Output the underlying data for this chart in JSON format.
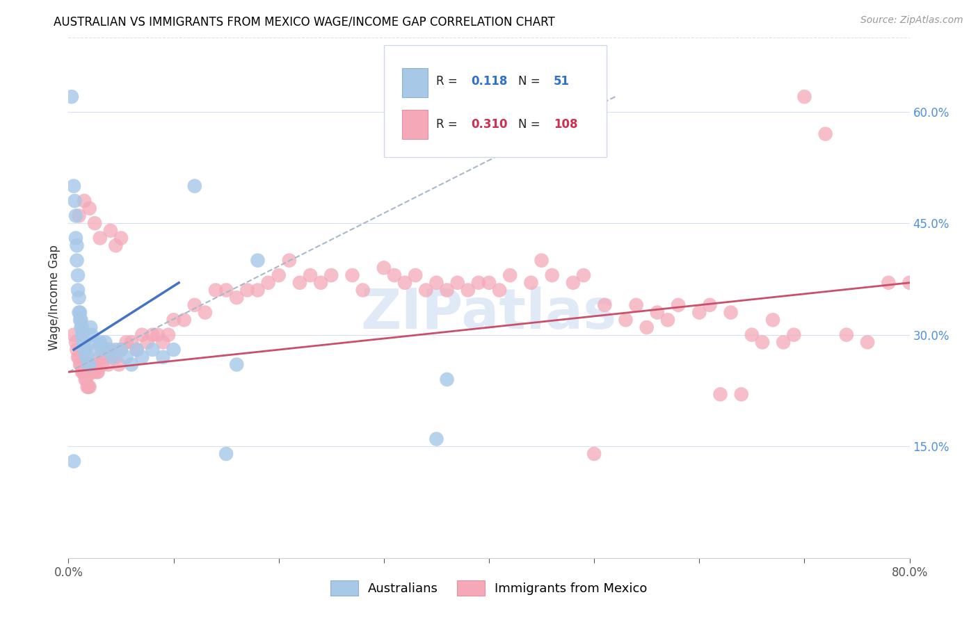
{
  "title": "AUSTRALIAN VS IMMIGRANTS FROM MEXICO WAGE/INCOME GAP CORRELATION CHART",
  "source": "Source: ZipAtlas.com",
  "ylabel": "Wage/Income Gap",
  "watermark": "ZIPatlas",
  "legend_label1": "Australians",
  "legend_label2": "Immigrants from Mexico",
  "R1": 0.118,
  "N1": 51,
  "R2": 0.31,
  "N2": 108,
  "color1": "#a8c8e8",
  "color2": "#f4a8b8",
  "line_color1": "#4472c4",
  "line_color2": "#c8506a",
  "dashed_line_color": "#a8b8cc",
  "grid_color": "#d8e0f0",
  "xmin": 0.0,
  "xmax": 0.8,
  "ymin": 0.0,
  "ymax": 0.7,
  "blue_x": [
    0.003,
    0.005,
    0.006,
    0.007,
    0.007,
    0.008,
    0.008,
    0.009,
    0.009,
    0.01,
    0.01,
    0.011,
    0.011,
    0.012,
    0.012,
    0.013,
    0.013,
    0.014,
    0.014,
    0.015,
    0.015,
    0.016,
    0.017,
    0.018,
    0.019,
    0.02,
    0.021,
    0.022,
    0.025,
    0.027,
    0.03,
    0.032,
    0.035,
    0.038,
    0.042,
    0.045,
    0.05,
    0.055,
    0.06,
    0.065,
    0.07,
    0.08,
    0.09,
    0.1,
    0.12,
    0.15,
    0.16,
    0.18,
    0.35,
    0.36,
    0.005
  ],
  "blue_y": [
    0.62,
    0.5,
    0.48,
    0.46,
    0.43,
    0.42,
    0.4,
    0.38,
    0.36,
    0.35,
    0.33,
    0.33,
    0.32,
    0.32,
    0.31,
    0.31,
    0.3,
    0.3,
    0.29,
    0.29,
    0.28,
    0.28,
    0.27,
    0.27,
    0.26,
    0.26,
    0.31,
    0.3,
    0.29,
    0.28,
    0.29,
    0.28,
    0.29,
    0.28,
    0.27,
    0.28,
    0.28,
    0.27,
    0.26,
    0.28,
    0.27,
    0.28,
    0.27,
    0.28,
    0.5,
    0.14,
    0.26,
    0.4,
    0.16,
    0.24,
    0.13
  ],
  "pink_x": [
    0.005,
    0.007,
    0.008,
    0.009,
    0.01,
    0.011,
    0.012,
    0.013,
    0.014,
    0.015,
    0.016,
    0.017,
    0.018,
    0.019,
    0.02,
    0.021,
    0.022,
    0.023,
    0.024,
    0.025,
    0.027,
    0.028,
    0.03,
    0.032,
    0.035,
    0.038,
    0.04,
    0.042,
    0.045,
    0.048,
    0.05,
    0.055,
    0.06,
    0.065,
    0.07,
    0.075,
    0.08,
    0.085,
    0.09,
    0.095,
    0.1,
    0.11,
    0.12,
    0.13,
    0.14,
    0.15,
    0.16,
    0.17,
    0.18,
    0.19,
    0.2,
    0.21,
    0.22,
    0.23,
    0.24,
    0.25,
    0.27,
    0.28,
    0.3,
    0.31,
    0.32,
    0.33,
    0.34,
    0.35,
    0.36,
    0.37,
    0.38,
    0.39,
    0.4,
    0.41,
    0.42,
    0.44,
    0.45,
    0.46,
    0.48,
    0.49,
    0.5,
    0.51,
    0.53,
    0.54,
    0.55,
    0.56,
    0.57,
    0.58,
    0.6,
    0.61,
    0.62,
    0.63,
    0.64,
    0.65,
    0.66,
    0.67,
    0.68,
    0.69,
    0.7,
    0.72,
    0.74,
    0.76,
    0.78,
    0.8,
    0.01,
    0.015,
    0.02,
    0.025,
    0.03,
    0.04,
    0.045,
    0.05
  ],
  "pink_y": [
    0.3,
    0.29,
    0.28,
    0.27,
    0.27,
    0.26,
    0.26,
    0.25,
    0.25,
    0.25,
    0.24,
    0.24,
    0.23,
    0.23,
    0.23,
    0.26,
    0.26,
    0.25,
    0.25,
    0.26,
    0.25,
    0.25,
    0.27,
    0.26,
    0.27,
    0.26,
    0.28,
    0.27,
    0.27,
    0.26,
    0.28,
    0.29,
    0.29,
    0.28,
    0.3,
    0.29,
    0.3,
    0.3,
    0.29,
    0.3,
    0.32,
    0.32,
    0.34,
    0.33,
    0.36,
    0.36,
    0.35,
    0.36,
    0.36,
    0.37,
    0.38,
    0.4,
    0.37,
    0.38,
    0.37,
    0.38,
    0.38,
    0.36,
    0.39,
    0.38,
    0.37,
    0.38,
    0.36,
    0.37,
    0.36,
    0.37,
    0.36,
    0.37,
    0.37,
    0.36,
    0.38,
    0.37,
    0.4,
    0.38,
    0.37,
    0.38,
    0.14,
    0.34,
    0.32,
    0.34,
    0.31,
    0.33,
    0.32,
    0.34,
    0.33,
    0.34,
    0.22,
    0.33,
    0.22,
    0.3,
    0.29,
    0.32,
    0.29,
    0.3,
    0.62,
    0.57,
    0.3,
    0.29,
    0.37,
    0.37,
    0.46,
    0.48,
    0.47,
    0.45,
    0.43,
    0.44,
    0.42,
    0.43
  ],
  "blue_line_x": [
    0.005,
    0.105
  ],
  "blue_line_y": [
    0.28,
    0.37
  ],
  "dash_line_x": [
    0.0,
    0.52
  ],
  "dash_line_y": [
    0.25,
    0.62
  ],
  "pink_line_x": [
    0.0,
    0.8
  ],
  "pink_line_y": [
    0.25,
    0.37
  ]
}
